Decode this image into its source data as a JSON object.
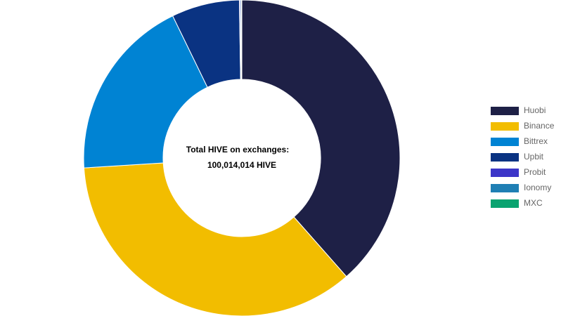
{
  "chart_data": {
    "type": "doughnut",
    "center_text": [
      "Total HIVE on exchanges:",
      "100,014,014 HIVE"
    ],
    "categories": [
      "Huobi",
      "Binance",
      "Bittrex",
      "Upbit",
      "Probit",
      "Ionomy",
      "MXC"
    ],
    "values": [
      38.5,
      35.5,
      18.8,
      6.95,
      0.1,
      0.1,
      0.05
    ],
    "colors": [
      "#1e2046",
      "#f2bd00",
      "#0083d3",
      "#0a3382",
      "#3c35c8",
      "#1f7fb4",
      "#0aa370"
    ],
    "legend": "right"
  }
}
